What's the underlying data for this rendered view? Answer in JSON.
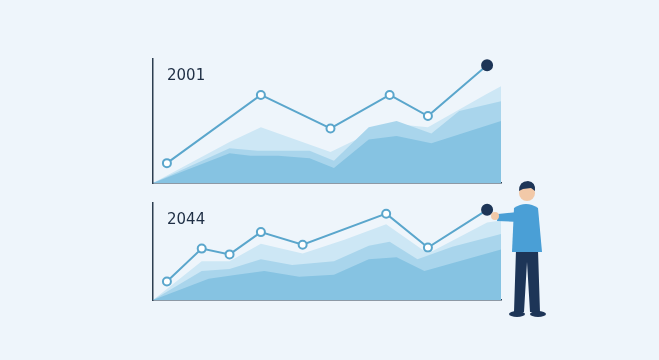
{
  "chart_data": [
    {
      "type": "line",
      "title": "2001",
      "xlim": [
        0,
        100
      ],
      "ylim": [
        0,
        100
      ],
      "tick_labels": false,
      "grid": false,
      "series": [
        {
          "type": "line",
          "marker": "circle",
          "color": "#5aa6cc",
          "x": [
            4,
            31,
            51,
            68,
            79,
            96
          ],
          "values": [
            16,
            71,
            44,
            71,
            54,
            95
          ]
        },
        {
          "type": "area",
          "color": "#86c3e2",
          "x": [
            0,
            22,
            28,
            36,
            45,
            52,
            62,
            70,
            80,
            100
          ],
          "values": [
            0,
            24,
            22,
            22,
            20,
            12,
            35,
            38,
            32,
            50
          ]
        },
        {
          "type": "area",
          "color": "#a9d5ec",
          "x": [
            0,
            22,
            30,
            45,
            52,
            62,
            70,
            80,
            88,
            100
          ],
          "values": [
            0,
            28,
            26,
            26,
            18,
            45,
            50,
            40,
            58,
            66
          ]
        },
        {
          "type": "area",
          "color": "#cde7f5",
          "x": [
            0,
            22,
            31,
            51,
            68,
            79,
            96,
            100
          ],
          "values": [
            0,
            33,
            45,
            25,
            48,
            45,
            72,
            78
          ]
        }
      ]
    },
    {
      "type": "line",
      "title": "2044",
      "xlim": [
        0,
        100
      ],
      "ylim": [
        0,
        100
      ],
      "tick_labels": false,
      "grid": false,
      "series": [
        {
          "type": "line",
          "marker": "circle",
          "color": "#5aa6cc",
          "x": [
            4,
            14,
            22,
            31,
            43,
            67,
            79,
            96
          ],
          "values": [
            19,
            53,
            47,
            70,
            57,
            89,
            54,
            93
          ]
        },
        {
          "type": "area",
          "color": "#86c3e2",
          "x": [
            0,
            16,
            24,
            32,
            42,
            52,
            62,
            70,
            78,
            100
          ],
          "values": [
            0,
            22,
            26,
            30,
            24,
            26,
            42,
            44,
            30,
            52
          ]
        },
        {
          "type": "area",
          "color": "#a9d5ec",
          "x": [
            0,
            14,
            22,
            31,
            40,
            52,
            62,
            68,
            76,
            86,
            100
          ],
          "values": [
            0,
            30,
            32,
            42,
            36,
            40,
            56,
            60,
            42,
            55,
            68
          ]
        },
        {
          "type": "area",
          "color": "#cde7f5",
          "x": [
            0,
            14,
            22,
            31,
            43,
            55,
            67,
            79,
            96,
            100
          ],
          "values": [
            0,
            40,
            40,
            58,
            48,
            62,
            78,
            48,
            80,
            82
          ]
        }
      ]
    }
  ]
}
